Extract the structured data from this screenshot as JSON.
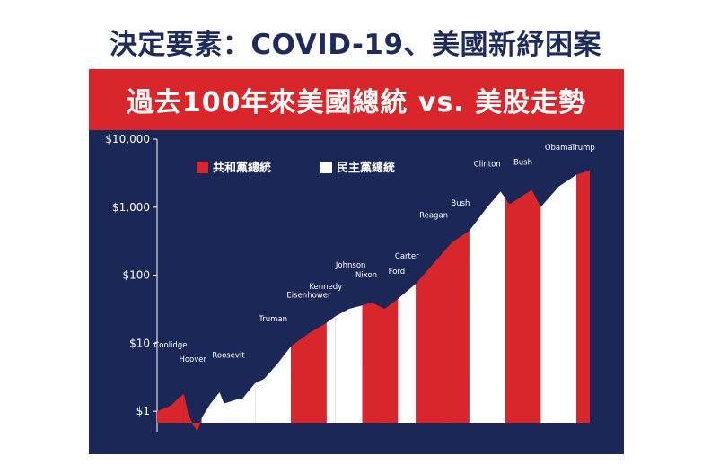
{
  "headline": "決定要素：COVID-19、美國新紓困案",
  "chart_data": {
    "type": "area",
    "title": "過去100年來美國總統 vs. 美股走勢",
    "y_scale": "log",
    "ylim": [
      0.5,
      10000
    ],
    "y_ticks": [
      {
        "value": 1,
        "label": "$1"
      },
      {
        "value": 10,
        "label": "$10"
      },
      {
        "value": 100,
        "label": "$100"
      },
      {
        "value": 1000,
        "label": "$1,000"
      },
      {
        "value": 10000,
        "label": "$10,000"
      }
    ],
    "xlim": [
      1923,
      2020
    ],
    "legend": {
      "position": "top-left",
      "items": [
        {
          "party": "republican",
          "label": "共和黨總統",
          "color": "#d9262b"
        },
        {
          "party": "democrat",
          "label": "民主黨總統",
          "color": "#ffffff"
        }
      ]
    },
    "presidencies": [
      {
        "name": "Coolidge",
        "party": "republican",
        "start": 1923,
        "end": 1929
      },
      {
        "name": "Hoover",
        "party": "republican",
        "start": 1929,
        "end": 1933
      },
      {
        "name": "Roosevlt",
        "party": "democrat",
        "start": 1933,
        "end": 1945
      },
      {
        "name": "Truman",
        "party": "democrat",
        "start": 1945,
        "end": 1953
      },
      {
        "name": "Eisenhower",
        "party": "republican",
        "start": 1953,
        "end": 1961
      },
      {
        "name": "Kennedy",
        "party": "democrat",
        "start": 1961,
        "end": 1963
      },
      {
        "name": "Johnson",
        "party": "democrat",
        "start": 1963,
        "end": 1969
      },
      {
        "name": "Nixon",
        "party": "republican",
        "start": 1969,
        "end": 1974
      },
      {
        "name": "Ford",
        "party": "republican",
        "start": 1974,
        "end": 1977
      },
      {
        "name": "Carter",
        "party": "democrat",
        "start": 1977,
        "end": 1981
      },
      {
        "name": "Reagan",
        "party": "republican",
        "start": 1981,
        "end": 1989
      },
      {
        "name": "Bush",
        "party": "republican",
        "start": 1989,
        "end": 1993
      },
      {
        "name": "Clinton",
        "party": "democrat",
        "start": 1993,
        "end": 2001
      },
      {
        "name": "Bush",
        "party": "republican",
        "start": 2001,
        "end": 2009
      },
      {
        "name": "Obama",
        "party": "democrat",
        "start": 2009,
        "end": 2017
      },
      {
        "name": "Trump",
        "party": "republican",
        "start": 2017,
        "end": 2020
      }
    ],
    "series": [
      {
        "values": [
          {
            "x": 1923,
            "y": 1.0
          },
          {
            "x": 1926,
            "y": 1.2
          },
          {
            "x": 1928,
            "y": 1.6
          },
          {
            "x": 1929,
            "y": 1.8
          },
          {
            "x": 1930,
            "y": 0.9
          },
          {
            "x": 1931,
            "y": 0.65
          },
          {
            "x": 1932,
            "y": 0.5
          },
          {
            "x": 1933,
            "y": 0.8
          },
          {
            "x": 1935,
            "y": 1.3
          },
          {
            "x": 1937,
            "y": 1.9
          },
          {
            "x": 1938,
            "y": 1.3
          },
          {
            "x": 1941,
            "y": 1.5
          },
          {
            "x": 1942,
            "y": 1.5
          },
          {
            "x": 1945,
            "y": 2.6
          },
          {
            "x": 1947,
            "y": 3.0
          },
          {
            "x": 1950,
            "y": 5.0
          },
          {
            "x": 1953,
            "y": 9.0
          },
          {
            "x": 1957,
            "y": 14
          },
          {
            "x": 1961,
            "y": 20
          },
          {
            "x": 1963,
            "y": 25
          },
          {
            "x": 1966,
            "y": 32
          },
          {
            "x": 1969,
            "y": 36
          },
          {
            "x": 1971,
            "y": 40
          },
          {
            "x": 1974,
            "y": 32
          },
          {
            "x": 1977,
            "y": 45
          },
          {
            "x": 1981,
            "y": 75
          },
          {
            "x": 1985,
            "y": 150
          },
          {
            "x": 1989,
            "y": 300
          },
          {
            "x": 1993,
            "y": 450
          },
          {
            "x": 1997,
            "y": 1000
          },
          {
            "x": 2000,
            "y": 1700
          },
          {
            "x": 2002,
            "y": 1100
          },
          {
            "x": 2007,
            "y": 1800
          },
          {
            "x": 2009,
            "y": 1000
          },
          {
            "x": 2013,
            "y": 2000
          },
          {
            "x": 2017,
            "y": 3000
          },
          {
            "x": 2020,
            "y": 3500
          }
        ]
      }
    ]
  }
}
